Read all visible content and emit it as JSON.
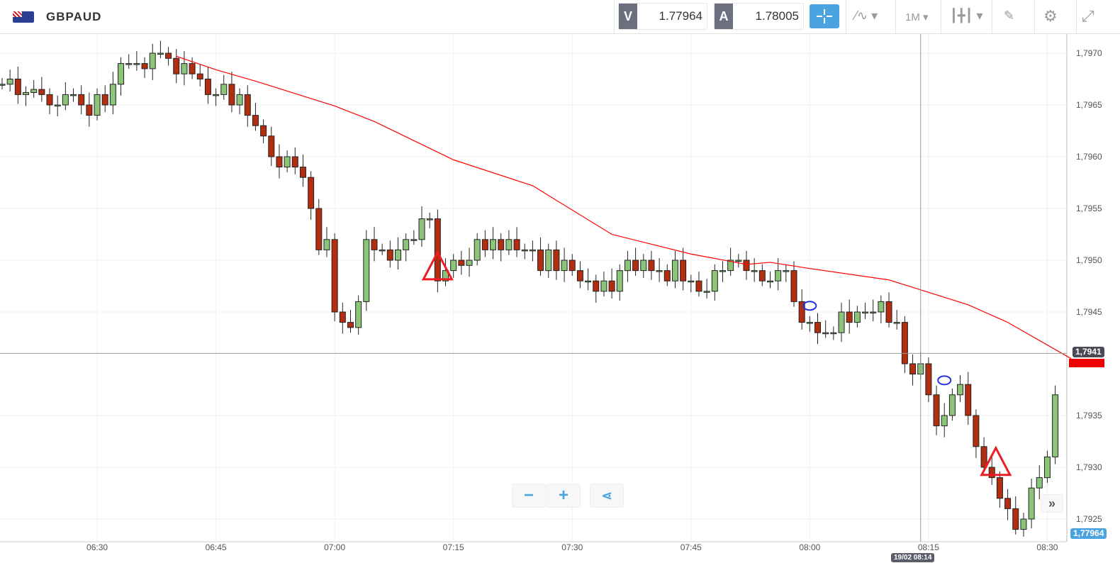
{
  "header": {
    "symbol": "GBPAUD",
    "sell_label": "V",
    "sell_price": "1.77964",
    "buy_label": "A",
    "buy_price": "1.78005",
    "timeframe": "1M"
  },
  "icons": [
    "flag-gb-au-icon",
    "crosshair-icon",
    "chart-type-icon",
    "candles-icon",
    "draw-icon",
    "gear-icon",
    "fullscreen-icon",
    "zoom-out-icon",
    "zoom-in-icon",
    "share-icon",
    "scroll-right-icon"
  ],
  "colors": {
    "up": "#8cc57a",
    "down": "#b32d0f",
    "ma": "#ff0000",
    "accent": "#4ba3e0",
    "annotation_triangle": "#ee1c25",
    "annotation_ellipse": "#2233dd"
  },
  "chart_data": {
    "type": "candlestick",
    "yticks": [
      "1,7970",
      "1,7965",
      "1,7960",
      "1,7955",
      "1,7950",
      "1,7945",
      "1,7935",
      "1,7930",
      "1,7925"
    ],
    "ytick_values": [
      1.797,
      1.7965,
      1.796,
      1.7955,
      1.795,
      1.7945,
      1.7935,
      1.793,
      1.7925
    ],
    "xticks": [
      "06:30",
      "06:45",
      "07:00",
      "07:15",
      "07:30",
      "07:45",
      "08:00",
      "08:15",
      "08:30"
    ],
    "xtick_minutes": [
      12,
      27,
      42,
      57,
      72,
      87,
      102,
      117,
      132
    ],
    "start_time": "06:18",
    "first_open": 1.7967,
    "closes": [
      1.7967,
      1.79675,
      1.7966,
      1.79662,
      1.79665,
      1.7966,
      1.7965,
      1.7965,
      1.7966,
      1.7966,
      1.7965,
      1.7964,
      1.7966,
      1.7965,
      1.7967,
      1.7969,
      1.7969,
      1.7969,
      1.79685,
      1.797,
      1.797,
      1.79695,
      1.7968,
      1.7969,
      1.7968,
      1.79675,
      1.7966,
      1.7966,
      1.7967,
      1.7965,
      1.7966,
      1.7964,
      1.7963,
      1.7962,
      1.796,
      1.7959,
      1.796,
      1.7959,
      1.7958,
      1.7955,
      1.7951,
      1.7952,
      1.7945,
      1.7944,
      1.79435,
      1.7946,
      1.7952,
      1.7951,
      1.7951,
      1.795,
      1.7951,
      1.7952,
      1.7952,
      1.7954,
      1.7954,
      1.7948,
      1.7949,
      1.795,
      1.79495,
      1.795,
      1.7952,
      1.7951,
      1.7952,
      1.7951,
      1.7952,
      1.7951,
      1.7951,
      1.7951,
      1.7949,
      1.7951,
      1.7949,
      1.795,
      1.7949,
      1.7948,
      1.7948,
      1.7947,
      1.7948,
      1.7947,
      1.7949,
      1.795,
      1.7949,
      1.795,
      1.7949,
      1.7949,
      1.7948,
      1.795,
      1.7948,
      1.7948,
      1.7947,
      1.7947,
      1.7949,
      1.7949,
      1.795,
      1.795,
      1.7949,
      1.7949,
      1.7948,
      1.7948,
      1.7949,
      1.7949,
      1.7946,
      1.7944,
      1.7944,
      1.7943,
      1.7943,
      1.7943,
      1.7945,
      1.7944,
      1.7945,
      1.7945,
      1.7945,
      1.7946,
      1.7944,
      1.7944,
      1.794,
      1.7939,
      1.794,
      1.7937,
      1.7934,
      1.7935,
      1.7937,
      1.7938,
      1.7935,
      1.7932,
      1.793,
      1.7929,
      1.7927,
      1.7926,
      1.7924,
      1.7925,
      1.7928,
      1.7929,
      1.7931,
      1.7937
    ],
    "ma": {
      "minutes": [
        22,
        27,
        32,
        42,
        47,
        57,
        67,
        77,
        87,
        94,
        97,
        102,
        112,
        122,
        127,
        135
      ],
      "values": [
        1.79697,
        1.79684,
        1.79673,
        1.79649,
        1.79634,
        1.79597,
        1.79572,
        1.79525,
        1.79506,
        1.79496,
        1.79498,
        1.79492,
        1.79481,
        1.79457,
        1.7944,
        1.79405
      ]
    },
    "crosshair": {
      "price_label": "1,7941",
      "time_label": "19/02 08:14",
      "price": 1.7941,
      "minute": 116
    },
    "last_price_label": "1,77964",
    "annotations": {
      "triangles": [
        {
          "minute": 55,
          "price": 1.79483
        },
        {
          "minute": 125.5,
          "price": 1.79294
        }
      ],
      "ellipses": [
        {
          "minute": 102,
          "price": 1.79456
        },
        {
          "minute": 119,
          "price": 1.79384
        }
      ]
    }
  }
}
